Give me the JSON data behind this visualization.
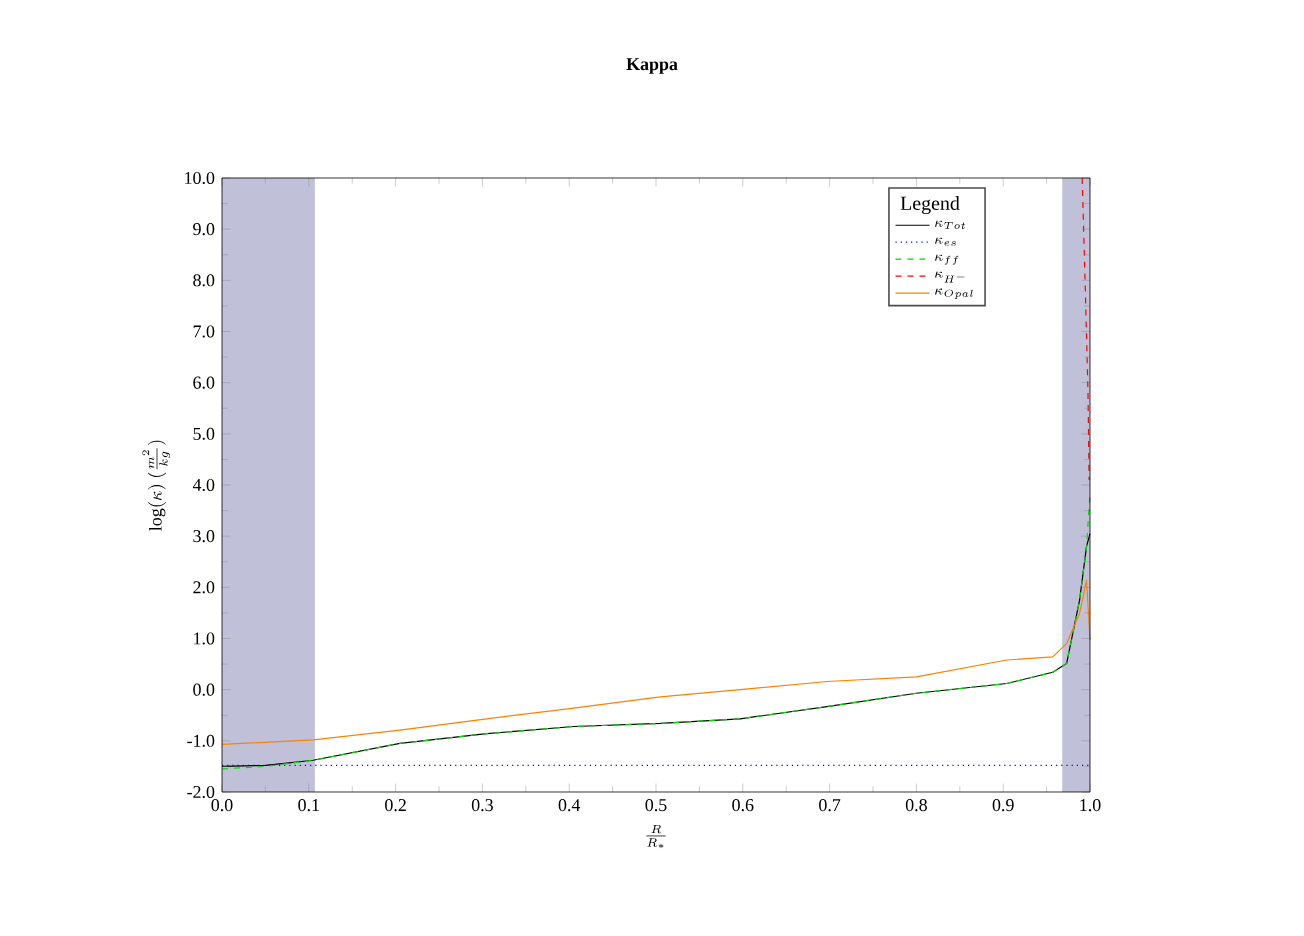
{
  "chart_data": {
    "type": "line",
    "title": "Kappa",
    "xlabel": "\\frac{R}{R_*}",
    "ylabel": "\\log(\\kappa)\\ (\\frac{m^2}{kg})",
    "legend_title": "Legend",
    "x": [
      0,
      0.05,
      0.105,
      0.205,
      0.305,
      0.405,
      0.505,
      0.597,
      0.697,
      0.8,
      0.904,
      0.957,
      0.973,
      0.988,
      0.996,
      1.0
    ],
    "series": [
      {
        "name": "\\kappa_{Tot}",
        "color": "#000000",
        "line_style": "solid",
        "values": [
          -1.5,
          -1.48,
          -1.38,
          -1.05,
          -0.86,
          -0.72,
          -0.66,
          -0.57,
          -0.33,
          -0.07,
          0.12,
          0.34,
          0.51,
          1.75,
          2.8,
          3.05
        ]
      },
      {
        "name": "\\kappa_{es}",
        "color": "#0000ff",
        "line_style": "dotted",
        "x": [
          0,
          1.0
        ],
        "values": [
          -1.48,
          -1.48
        ]
      },
      {
        "name": "\\kappa_{ff}",
        "color": "#00dd00",
        "line_style": "dashed",
        "values": [
          -1.55,
          -1.5,
          -1.38,
          -1.05,
          -0.86,
          -0.72,
          -0.66,
          -0.57,
          -0.33,
          -0.07,
          0.12,
          0.34,
          0.51,
          1.75,
          2.8,
          3.84
        ]
      },
      {
        "name": "\\kappa_{H^-}",
        "color": "#ff0000",
        "line_style": "dashed",
        "x": [
          0.991,
          0.9947,
          0.9977,
          0.999
        ],
        "values": [
          10,
          7.75,
          5.8,
          4.1
        ]
      },
      {
        "name": "\\kappa_{Opal}",
        "color": "#ff8000",
        "line_style": "solid",
        "x": [
          0,
          0.105,
          0.205,
          0.305,
          0.405,
          0.505,
          0.597,
          0.697,
          0.8,
          0.904,
          0.957,
          0.973,
          0.988,
          0.996,
          1.0
        ],
        "values": [
          -1.07,
          -0.98,
          -0.79,
          -0.57,
          -0.36,
          -0.14,
          0.0,
          0.16,
          0.25,
          0.58,
          0.64,
          0.9,
          1.49,
          2.14,
          0.97
        ]
      }
    ],
    "bands": [
      {
        "axis": "x",
        "from": 0,
        "to": 0.107,
        "color": "#c0c0d8"
      },
      {
        "axis": "x",
        "from": 0.968,
        "to": 1.0,
        "color": "#c0c0d8"
      }
    ],
    "xlim": [
      0,
      1.0
    ],
    "ylim": [
      -2,
      10
    ],
    "xticks": [
      {
        "value": 0,
        "label": "0.0"
      },
      {
        "value": 0.1,
        "label": "0.1"
      },
      {
        "value": 0.2,
        "label": "0.2"
      },
      {
        "value": 0.3,
        "label": "0.3"
      },
      {
        "value": 0.4,
        "label": "0.4"
      },
      {
        "value": 0.5,
        "label": "0.5"
      },
      {
        "value": 0.6,
        "label": "0.6"
      },
      {
        "value": 0.7,
        "label": "0.7"
      },
      {
        "value": 0.8,
        "label": "0.8"
      },
      {
        "value": 0.9,
        "label": "0.9"
      },
      {
        "value": 1.0,
        "label": "1.0"
      }
    ],
    "yticks": [
      {
        "value": -2,
        "label": "-2.0"
      },
      {
        "value": -1,
        "label": "-1.0"
      },
      {
        "value": 0,
        "label": "0.0"
      },
      {
        "value": 1,
        "label": "1.0"
      },
      {
        "value": 2,
        "label": "2.0"
      },
      {
        "value": 3,
        "label": "3.0"
      },
      {
        "value": 4,
        "label": "4.0"
      },
      {
        "value": 5,
        "label": "5.0"
      },
      {
        "value": 6,
        "label": "6.0"
      },
      {
        "value": 7,
        "label": "7.0"
      },
      {
        "value": 8,
        "label": "8.0"
      },
      {
        "value": 9,
        "label": "9.0"
      },
      {
        "value": 10,
        "label": "10.0"
      }
    ],
    "legend": "top right",
    "grid": false,
    "marker": "none"
  }
}
